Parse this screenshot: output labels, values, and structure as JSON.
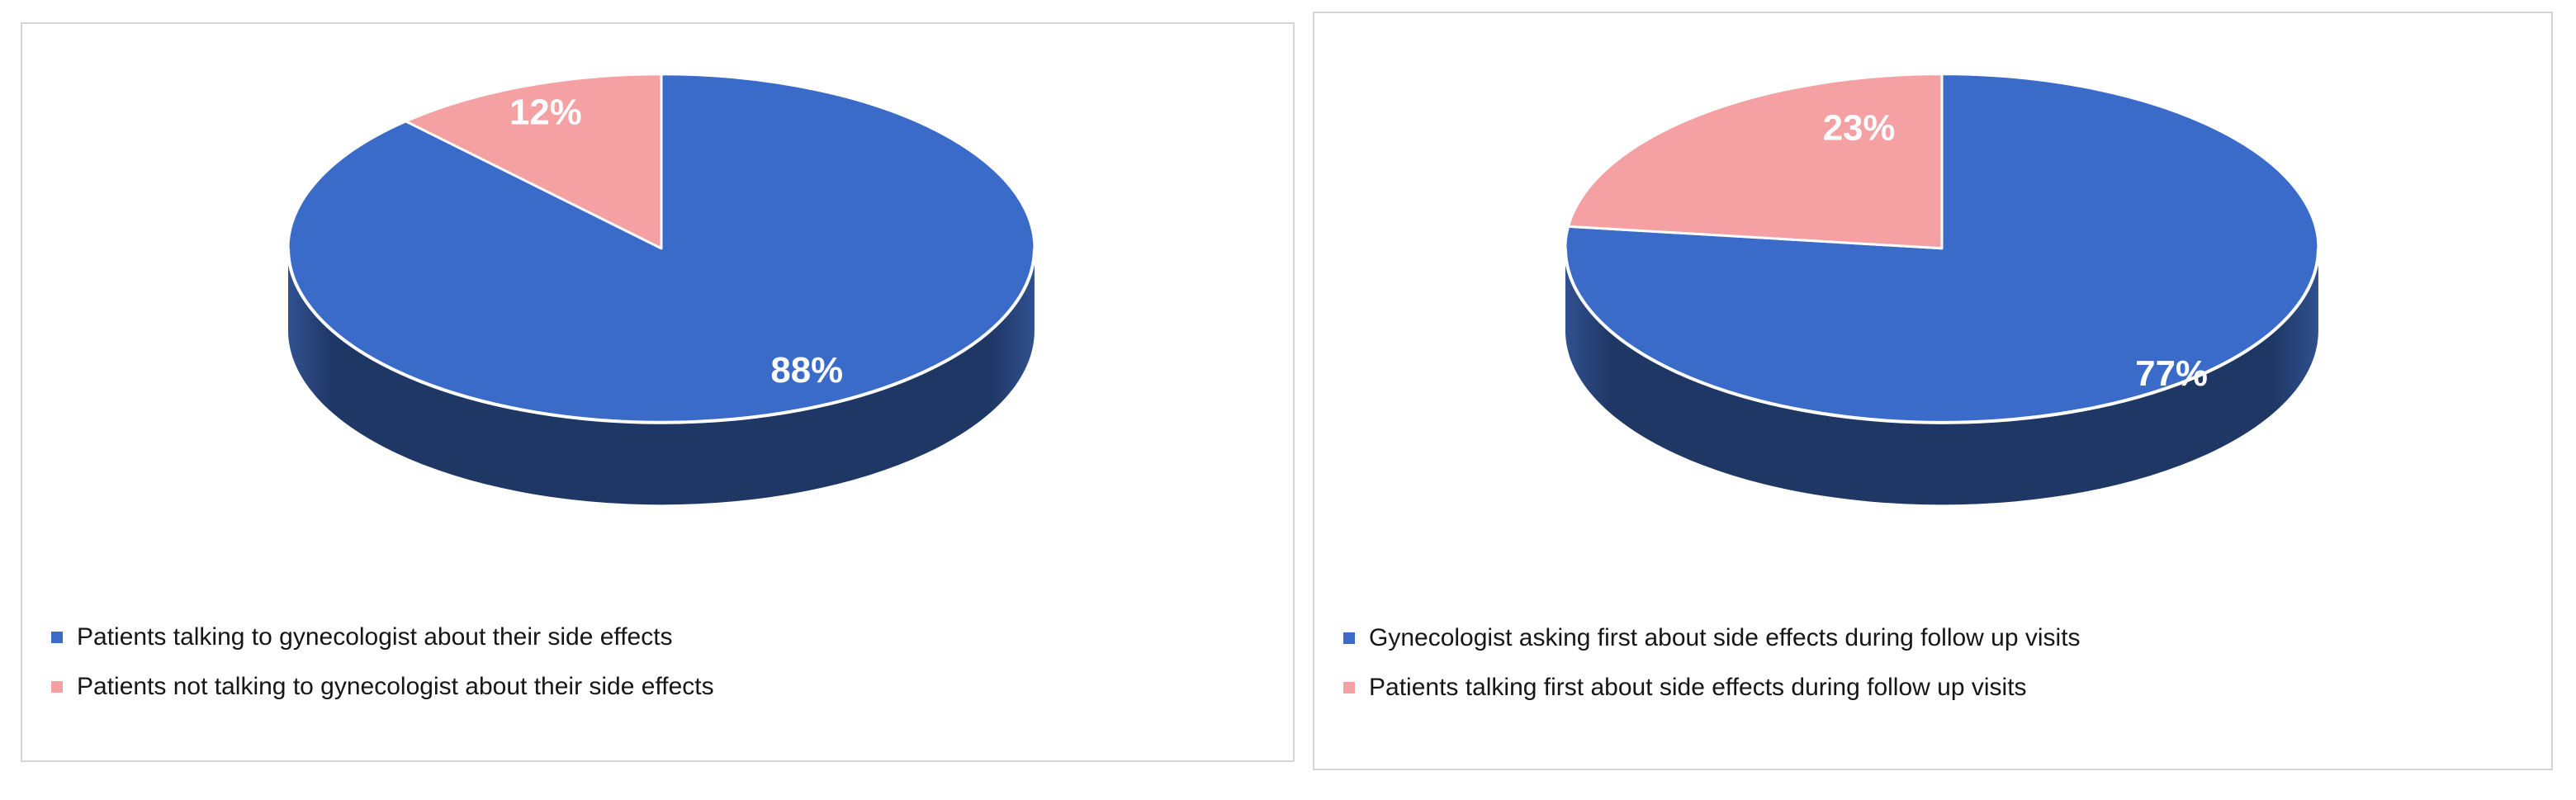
{
  "chart_data": [
    {
      "type": "pie",
      "style": "3d",
      "title": "",
      "direction": "clockwise",
      "start_angle_deg": 0,
      "legend_position": "bottom-left",
      "slices": [
        {
          "label": "Patients talking to gynecologist about their side effects",
          "value": 88,
          "display": "88%",
          "color": "#3A6BC8"
        },
        {
          "label": "Patients not talking to gynecologist about their side effects",
          "value": 12,
          "display": "12%",
          "color": "#F5A0A2"
        }
      ],
      "colors": {
        "side": "#1F3765",
        "side_edge": "#30508F",
        "slice_border": "#FFFFFF",
        "label_text": "#FFFFFF"
      }
    },
    {
      "type": "pie",
      "style": "3d",
      "title": "",
      "direction": "clockwise",
      "start_angle_deg": 0,
      "legend_position": "bottom-left",
      "slices": [
        {
          "label": "Gynecologist asking first about side effects during follow up visits",
          "value": 77,
          "display": "77%",
          "color": "#3A6BC8"
        },
        {
          "label": "Patients talking first about side effects during follow up visits",
          "value": 23,
          "display": "23%",
          "color": "#F5A0A2"
        }
      ],
      "colors": {
        "side": "#1F3765",
        "side_edge": "#30508F",
        "slice_border": "#FFFFFF",
        "label_text": "#FFFFFF"
      }
    }
  ]
}
